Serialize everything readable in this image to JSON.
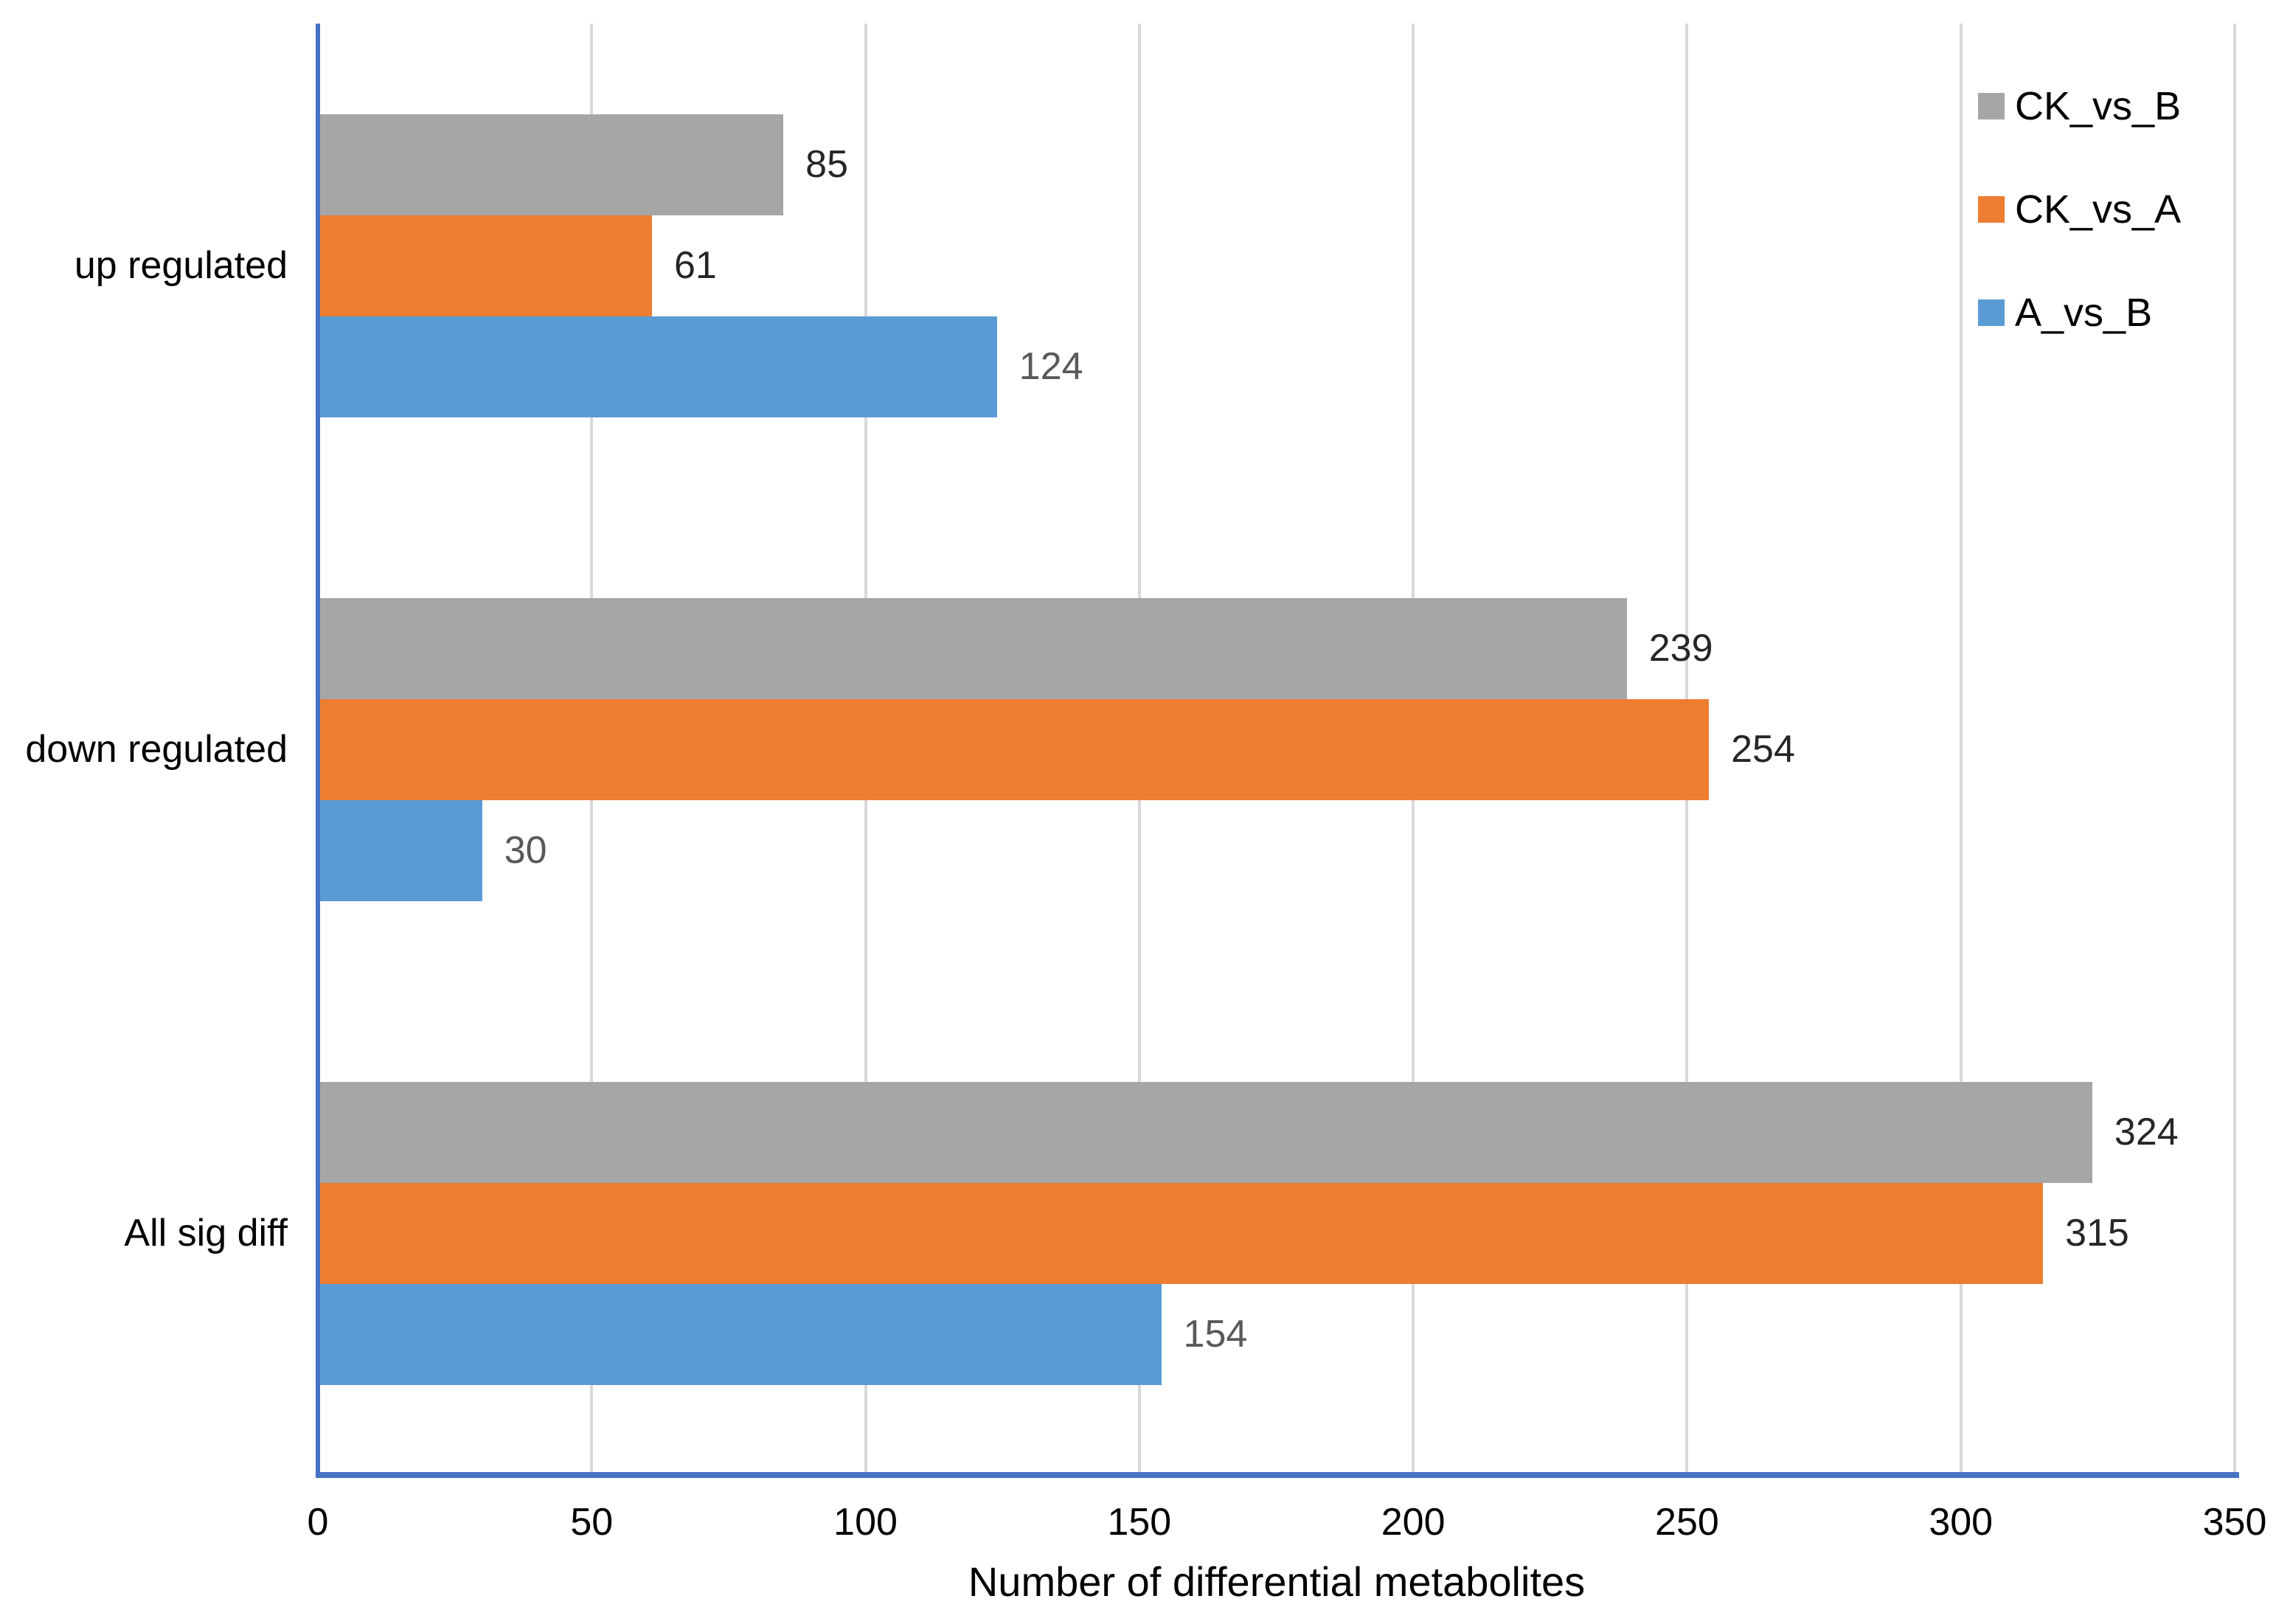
{
  "chart_data": {
    "type": "bar",
    "orientation": "horizontal",
    "xlabel": "Number of differential metabolites",
    "categories": [
      "up regulated",
      "down regulated",
      "All sig diff"
    ],
    "series": [
      {
        "name": "CK_vs_B",
        "color": "#A6A6A6",
        "label_color": "#262626",
        "values": [
          85,
          239,
          324
        ]
      },
      {
        "name": "CK_vs_A",
        "color": "#ED7D31",
        "label_color": "#262626",
        "values": [
          61,
          254,
          315
        ]
      },
      {
        "name": "A_vs_B",
        "color": "#5B9BD5",
        "label_color": "#595959",
        "values": [
          124,
          30,
          154
        ]
      }
    ],
    "xlim": [
      0,
      350
    ],
    "xticks": [
      "0",
      "50",
      "100",
      "150",
      "200",
      "250",
      "300",
      "350"
    ],
    "grid": "vertical-gridlines-on",
    "gridline_color": "#D9D9D9",
    "axis_line_color": "#4472C4",
    "legend_position": "top-right",
    "legend_entries": [
      "CK_vs_B",
      "CK_vs_A",
      "A_vs_B"
    ]
  }
}
